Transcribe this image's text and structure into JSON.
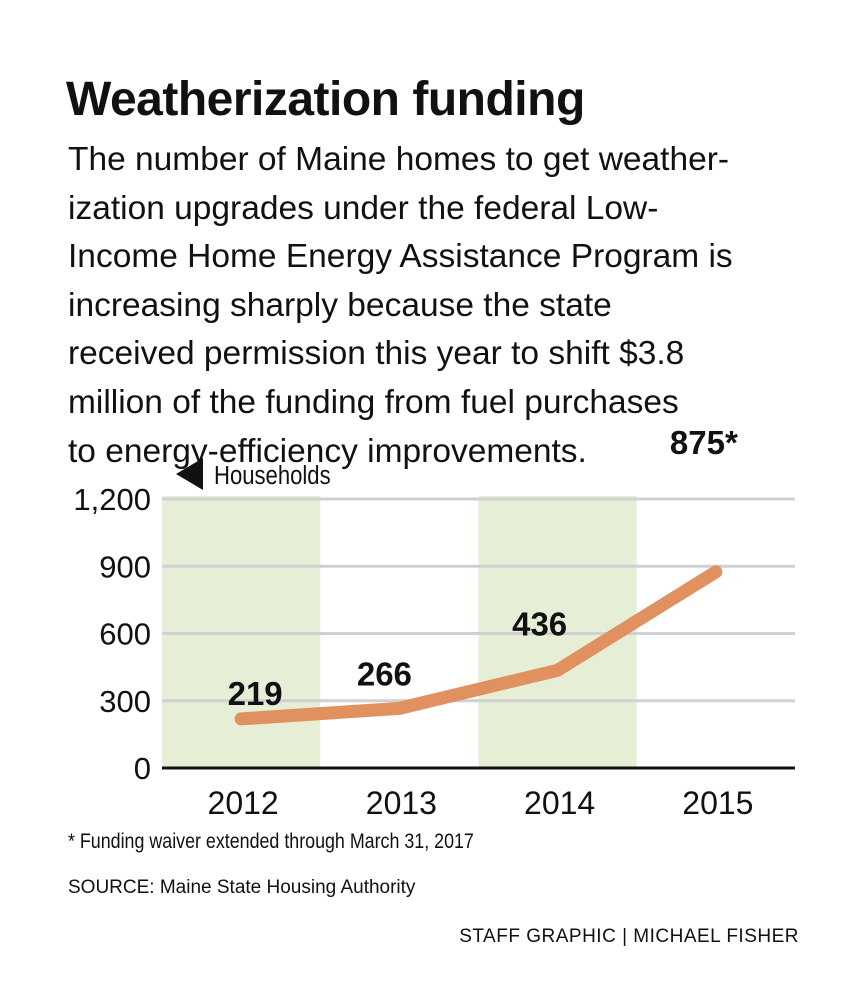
{
  "title": "Weatherization funding",
  "subtitle_lines": [
    "The number of Maine homes to get weather-",
    "ization upgrades under the federal Low-",
    "Income Home Energy Assistance Program is",
    "increasing sharply because the state",
    "received permission this year to shift $3.8",
    "million of the funding from fuel purchases",
    "to energy-efficiency improvements."
  ],
  "colors": {
    "line": "#e0915f",
    "shade": "#e6efd6",
    "grid": "#d0d0d2",
    "axis": "#111111"
  },
  "chart_data": {
    "type": "line",
    "ylabel": "Households",
    "categories": [
      "2012",
      "2013",
      "2014",
      "2015"
    ],
    "values": [
      219,
      266,
      436,
      875
    ],
    "data_labels": [
      "219",
      "266",
      "436",
      "875*"
    ],
    "ylim": [
      0,
      1200
    ],
    "yticks": [
      0,
      300,
      600,
      900,
      1200
    ],
    "ytick_labels": [
      "0",
      "300",
      "600",
      "900",
      "1,200"
    ],
    "shaded_categories": [
      "2012",
      "2014"
    ],
    "grid": true
  },
  "footnote": "* Funding waiver extended through March 31, 2017",
  "source": "SOURCE: Maine State Housing Authority",
  "credit": "STAFF GRAPHIC | MICHAEL FISHER"
}
